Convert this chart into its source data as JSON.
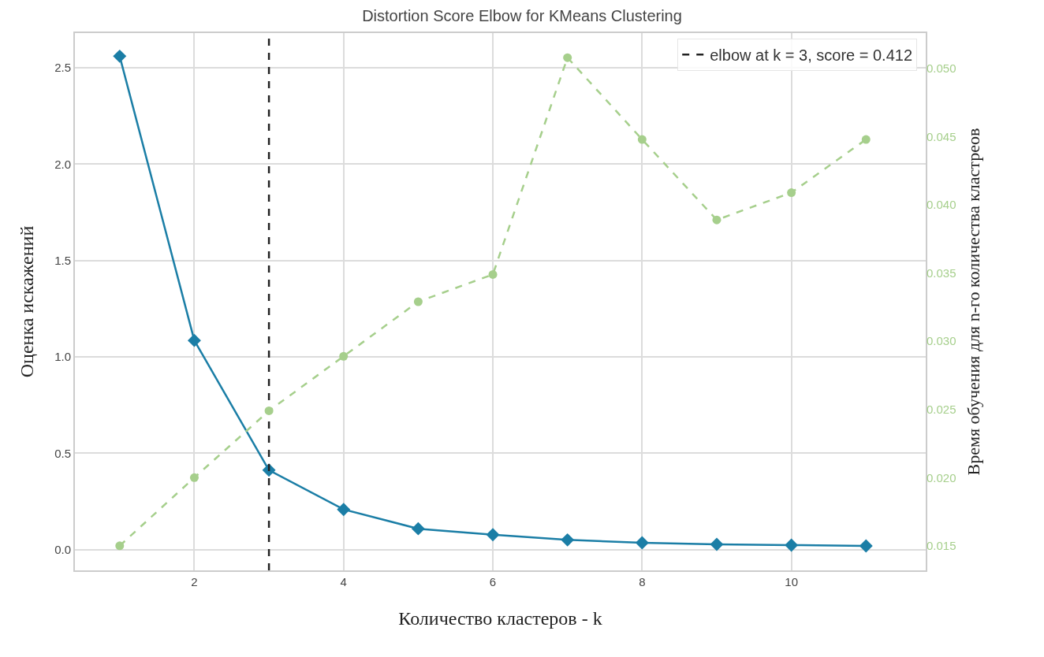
{
  "chart_data": {
    "type": "line",
    "title": "Distortion Score Elbow for KMeans Clustering",
    "xlabel": "Количество кластеров - k",
    "ylabel": "Оценка искажений",
    "y2label": "Время обучения для n-го количества кластреов",
    "x": [
      1,
      2,
      3,
      4,
      5,
      6,
      7,
      8,
      9,
      10,
      11
    ],
    "series": [
      {
        "color": "#1b7ea6",
        "marker": "diamond",
        "line_style": "solid",
        "values": [
          2.56,
          1.085,
          0.412,
          0.208,
          0.108,
          0.077,
          0.05,
          0.035,
          0.027,
          0.023,
          0.019
        ]
      },
      {
        "color": "#a6cf8c",
        "marker": "circle",
        "line_style": "dashed",
        "axis": "y2",
        "values": [
          0.015,
          0.02,
          0.0249,
          0.0289,
          0.0329,
          0.0349,
          0.0508,
          0.0448,
          0.0389,
          0.0409,
          0.0448
        ]
      }
    ],
    "xlim": [
      0.4,
      11.8
    ],
    "xticks": [
      2,
      4,
      6,
      8,
      10
    ],
    "ylim": [
      -0.108,
      2.68
    ],
    "yticks": [
      {
        "value": 0,
        "label": "0.0"
      },
      {
        "value": 0.5,
        "label": "0.5"
      },
      {
        "value": 1.0,
        "label": "1.0"
      },
      {
        "value": 1.5,
        "label": "1.5"
      },
      {
        "value": 2.0,
        "label": "2.0"
      },
      {
        "value": 2.5,
        "label": "2.5"
      }
    ],
    "y2lim": [
      0.0132,
      0.0526
    ],
    "y2ticks": [
      {
        "value": 0.015,
        "label": "0.015"
      },
      {
        "value": 0.02,
        "label": "0.020"
      },
      {
        "value": 0.025,
        "label": "0.025"
      },
      {
        "value": 0.03,
        "label": "0.030"
      },
      {
        "value": 0.035,
        "label": "0.035"
      },
      {
        "value": 0.04,
        "label": "0.040"
      },
      {
        "value": 0.045,
        "label": "0.045"
      },
      {
        "value": 0.05,
        "label": "0.050"
      }
    ],
    "ref_lines": [
      {
        "axis": "x",
        "value": 3,
        "label": "elbow at k = 3, score = 0.412",
        "color": "#222222",
        "line_style": "dashed"
      }
    ],
    "grid": true
  }
}
